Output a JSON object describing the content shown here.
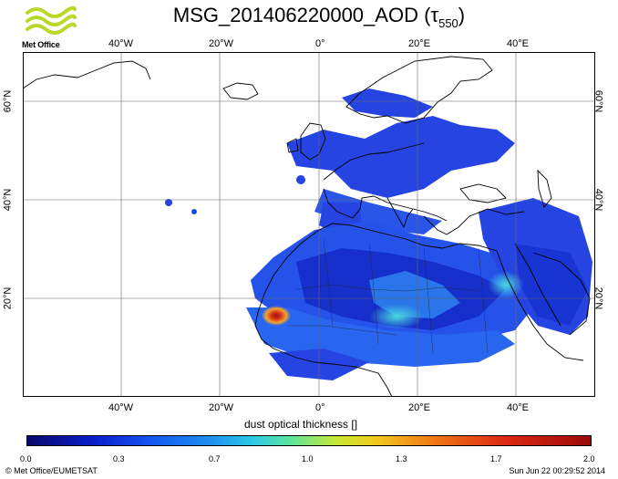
{
  "title": {
    "main": "MSG_201406220000_AOD (τ",
    "subscript": "550",
    "close": ")"
  },
  "logo": {
    "text": "Met Office",
    "icon": "met-office-waves-logo"
  },
  "map": {
    "projection": "equirectangular",
    "extent": {
      "lon_min": -60,
      "lon_max": 56,
      "lat_min": 0,
      "lat_max": 70
    },
    "lon_ticks": [
      {
        "value": -40,
        "label": "40°W"
      },
      {
        "value": -20,
        "label": "20°W"
      },
      {
        "value": 0,
        "label": "0°"
      },
      {
        "value": 20,
        "label": "20°E"
      },
      {
        "value": 40,
        "label": "40°E"
      }
    ],
    "lat_ticks": [
      {
        "value": 20,
        "label": "20°N"
      },
      {
        "value": 40,
        "label": "40°N"
      },
      {
        "value": 60,
        "label": "60°N"
      }
    ],
    "colors": {
      "land_outline": "#000000",
      "grid": "#555555",
      "dust_hotspot": "#d22a10"
    }
  },
  "colorbar": {
    "label": "dust optical thickness []",
    "ticks": [
      "0.0",
      "0.3",
      "0.7",
      "1.0",
      "1.3",
      "1.7",
      "2.0"
    ],
    "range": [
      0.0,
      2.0
    ]
  },
  "footer": {
    "credit": "© Met Office/EUMETSAT",
    "timestamp": "Sun Jun 22 00:29:52 2014"
  }
}
